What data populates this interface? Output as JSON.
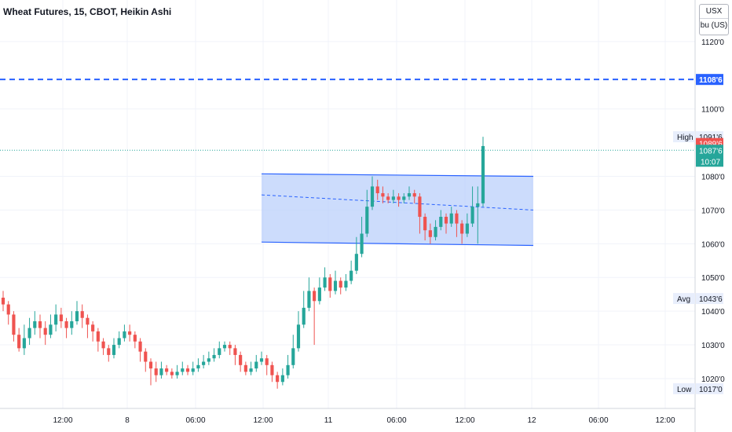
{
  "header": {
    "title": "Wheat Futures, 15, CBOT, Heikin Ashi"
  },
  "unit_selector": {
    "currency": "USX",
    "unit": "bu (US)"
  },
  "chart_data": {
    "type": "candlestick",
    "price_axis_ticks": [
      "1120'0",
      "1100'0",
      "1080'0",
      "1070'0",
      "1060'0",
      "1050'0",
      "1040'0",
      "1030'0",
      "1020'0"
    ],
    "price_axis_tick_values": [
      1120,
      1100,
      1080,
      1070,
      1060,
      1050,
      1040,
      1030,
      1020
    ],
    "time_axis_ticks": [
      "12:00",
      "8",
      "06:00",
      "12:00",
      "11",
      "06:00",
      "12:00",
      "12",
      "06:00",
      "12:00"
    ],
    "ylim": [
      1013,
      1130
    ],
    "dashed_line": {
      "value": 1108.75,
      "label": "1108'6",
      "color": "#2962ff"
    },
    "price_labels": [
      {
        "name": "High",
        "value": 1091.75,
        "label": "1091'6"
      },
      {
        "name": "",
        "value": 1089.75,
        "label": "1089'6",
        "color": "#ef5350"
      },
      {
        "name": "",
        "value": 1087.75,
        "label": "1087'6",
        "countdown": "10:07",
        "color": "#26a69a"
      },
      {
        "name": "Avg",
        "value": 1043.75,
        "label": "1043'6"
      },
      {
        "name": "Low",
        "value": 1017.0,
        "label": "1017'0"
      }
    ],
    "channel": {
      "upper": [
        1080.75,
        1080.0
      ],
      "middle": [
        1074.5,
        1070.0
      ],
      "lower": [
        1060.5,
        1059.5
      ],
      "fill": "#bbd0fb",
      "line_color": "#2962ff"
    },
    "up_color": "#26a69a",
    "down_color": "#ef5350",
    "candles": [
      [
        1044,
        1042,
        1046,
        1040
      ],
      [
        1042,
        1039,
        1043,
        1036
      ],
      [
        1039,
        1033,
        1040,
        1031
      ],
      [
        1033,
        1029,
        1035,
        1028
      ],
      [
        1029,
        1032,
        1036,
        1027
      ],
      [
        1032,
        1035,
        1038,
        1030
      ],
      [
        1035,
        1037,
        1040,
        1033
      ],
      [
        1037,
        1035,
        1039,
        1032
      ],
      [
        1035,
        1033,
        1037,
        1030
      ],
      [
        1033,
        1036,
        1039,
        1032
      ],
      [
        1036,
        1039,
        1042,
        1034
      ],
      [
        1039,
        1037,
        1041,
        1035
      ],
      [
        1037,
        1035,
        1038,
        1032
      ],
      [
        1035,
        1037,
        1040,
        1033
      ],
      [
        1037,
        1040,
        1043,
        1036
      ],
      [
        1040,
        1038,
        1042,
        1035
      ],
      [
        1038,
        1036,
        1039,
        1032
      ],
      [
        1036,
        1034,
        1037,
        1031
      ],
      [
        1034,
        1031,
        1035,
        1028
      ],
      [
        1031,
        1029,
        1032,
        1027
      ],
      [
        1029,
        1027,
        1030,
        1025
      ],
      [
        1027,
        1030,
        1032,
        1026
      ],
      [
        1030,
        1032,
        1034,
        1029
      ],
      [
        1032,
        1034,
        1036,
        1031
      ],
      [
        1034,
        1033,
        1036,
        1031
      ],
      [
        1033,
        1031,
        1034,
        1029
      ],
      [
        1031,
        1028,
        1032,
        1025
      ],
      [
        1028,
        1025,
        1029,
        1022
      ],
      [
        1025,
        1023,
        1026,
        1018
      ],
      [
        1023,
        1021,
        1025,
        1019
      ],
      [
        1021,
        1023,
        1025,
        1020
      ],
      [
        1023,
        1022,
        1024,
        1021
      ],
      [
        1022,
        1021,
        1023,
        1020
      ],
      [
        1021,
        1022,
        1024,
        1020
      ],
      [
        1022,
        1023,
        1025,
        1021
      ],
      [
        1023,
        1022,
        1024,
        1021
      ],
      [
        1022,
        1023,
        1025,
        1021
      ],
      [
        1023,
        1024,
        1026,
        1022
      ],
      [
        1024,
        1025,
        1027,
        1023
      ],
      [
        1025,
        1026,
        1028,
        1024
      ],
      [
        1026,
        1027,
        1029,
        1025
      ],
      [
        1027,
        1029,
        1031,
        1026
      ],
      [
        1029,
        1030,
        1031,
        1028
      ],
      [
        1030,
        1029,
        1031,
        1027
      ],
      [
        1029,
        1027,
        1030,
        1024
      ],
      [
        1027,
        1024,
        1028,
        1022
      ],
      [
        1024,
        1022,
        1025,
        1021
      ],
      [
        1022,
        1023,
        1025,
        1021
      ],
      [
        1023,
        1025,
        1027,
        1022
      ],
      [
        1025,
        1026,
        1028,
        1024
      ],
      [
        1026,
        1024,
        1027,
        1021
      ],
      [
        1024,
        1021,
        1025,
        1019
      ],
      [
        1021,
        1019,
        1022,
        1017
      ],
      [
        1019,
        1021,
        1023,
        1018
      ],
      [
        1021,
        1024,
        1027,
        1020
      ],
      [
        1024,
        1029,
        1033,
        1023
      ],
      [
        1029,
        1036,
        1040,
        1028
      ],
      [
        1036,
        1041,
        1046,
        1035
      ],
      [
        1041,
        1046,
        1050,
        1040
      ],
      [
        1046,
        1043,
        1047,
        1030
      ],
      [
        1043,
        1047,
        1050,
        1042
      ],
      [
        1047,
        1050,
        1053,
        1046
      ],
      [
        1050,
        1046,
        1051,
        1044
      ],
      [
        1046,
        1049,
        1052,
        1045
      ],
      [
        1049,
        1047,
        1050,
        1045
      ],
      [
        1047,
        1049,
        1051,
        1046
      ],
      [
        1049,
        1052,
        1055,
        1048
      ],
      [
        1052,
        1057,
        1062,
        1051
      ],
      [
        1057,
        1063,
        1068,
        1056
      ],
      [
        1063,
        1071,
        1076,
        1062
      ],
      [
        1071,
        1077,
        1080,
        1070
      ],
      [
        1077,
        1075,
        1079,
        1073
      ],
      [
        1075,
        1074,
        1077,
        1072
      ],
      [
        1074,
        1073,
        1075,
        1072
      ],
      [
        1073,
        1074,
        1076,
        1072
      ],
      [
        1074,
        1073,
        1075,
        1071
      ],
      [
        1073,
        1074,
        1075,
        1072
      ],
      [
        1074,
        1075,
        1077,
        1073
      ],
      [
        1075,
        1074,
        1076,
        1072
      ],
      [
        1074,
        1068,
        1075,
        1063
      ],
      [
        1068,
        1064,
        1069,
        1061
      ],
      [
        1064,
        1062,
        1066,
        1060
      ],
      [
        1062,
        1065,
        1067,
        1061
      ],
      [
        1065,
        1068,
        1070,
        1064
      ],
      [
        1068,
        1066,
        1069,
        1063
      ],
      [
        1066,
        1069,
        1071,
        1065
      ],
      [
        1069,
        1066,
        1070,
        1062
      ],
      [
        1066,
        1063,
        1067,
        1060
      ],
      [
        1063,
        1066,
        1069,
        1062
      ],
      [
        1066,
        1071,
        1077,
        1065
      ],
      [
        1071,
        1072,
        1077,
        1060
      ],
      [
        1072,
        1089,
        1091.75,
        1071
      ]
    ]
  }
}
